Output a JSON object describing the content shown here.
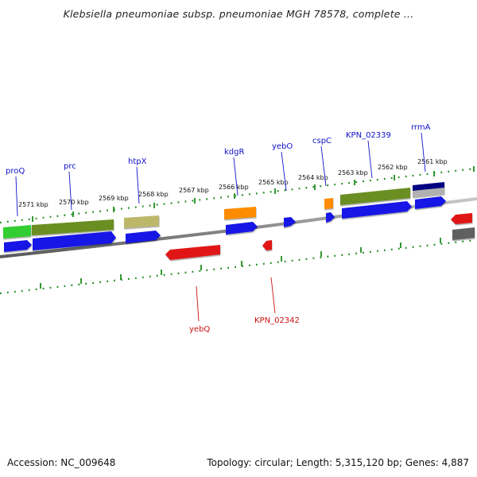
{
  "title": "Klebsiella pneumoniae subsp. pneumoniae MGH 78578, complete ...",
  "footer": {
    "accession": "Accession: NC_009648",
    "topology": "Topology: circular; Length: 5,315,120 bp; Genes: 4,887"
  },
  "colors": {
    "backbone": "#7a7a7a",
    "tick": "#1e8c1e",
    "label_blue": "#1010cc",
    "label_red": "#cc1010",
    "cds": "#1414e6",
    "cds_rev": "#e01414",
    "gene_olive": "#6b8e23",
    "gene_khaki": "#bdb76b",
    "gene_orange": "#ff8c00",
    "gene_navy": "#000080",
    "gene_gray": "#b0b0b0",
    "gene_green": "#32cd32"
  },
  "kbp_labels": [
    "2571 kbp",
    "2570 kbp",
    "2569 kbp",
    "2568 kbp",
    "2567 kbp",
    "2566 kbp",
    "2565 kbp",
    "2564 kbp",
    "2563 kbp",
    "2562 kbp",
    "2561 kbp"
  ],
  "gene_labels_top": [
    "proQ",
    "prc",
    "htpX",
    "kdgR",
    "yebO",
    "cspC",
    "KPN_02339",
    "rrmA"
  ],
  "gene_labels_bottom": [
    "yebQ",
    "KPN_02342"
  ]
}
